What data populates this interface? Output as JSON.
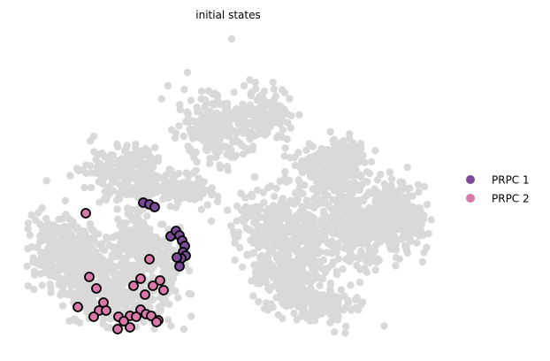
{
  "chart_data": {
    "type": "scatter",
    "title": "initial states",
    "xlabel": "",
    "ylabel": "",
    "grid": false,
    "axes_visible": false,
    "legend_position": "right",
    "background_color": "#d9d9d9",
    "highlight_edge_color": "#000000",
    "series": [
      {
        "name": "PRPC 1",
        "color": "#7b4a96",
        "points": [
          [
            162,
            229
          ],
          [
            169,
            231
          ],
          [
            175,
            234
          ],
          [
            193,
            267
          ],
          [
            199,
            261
          ],
          [
            203,
            266
          ],
          [
            206,
            272
          ],
          [
            209,
            278
          ],
          [
            207,
            285
          ],
          [
            210,
            289
          ],
          [
            205,
            292
          ],
          [
            200,
            291
          ],
          [
            203,
            301
          ]
        ]
      },
      {
        "name": "PRPC 2",
        "color": "#d977a8",
        "points": [
          [
            97,
            241
          ],
          [
            169,
            293
          ],
          [
            101,
            313
          ],
          [
            159,
            315
          ],
          [
            181,
            317
          ],
          [
            109,
            326
          ],
          [
            151,
            323
          ],
          [
            173,
            323
          ],
          [
            185,
            328
          ],
          [
            164,
            333
          ],
          [
            117,
            342
          ],
          [
            88,
            347
          ],
          [
            112,
            351
          ],
          [
            120,
            351
          ],
          [
            106,
            358
          ],
          [
            134,
            358
          ],
          [
            147,
            357
          ],
          [
            159,
            350
          ],
          [
            165,
            355
          ],
          [
            171,
            357
          ],
          [
            154,
            358
          ],
          [
            140,
            363
          ],
          [
            179,
            362
          ],
          [
            133,
            372
          ],
          [
            147,
            370
          ],
          [
            177,
            364
          ]
        ]
      }
    ]
  }
}
